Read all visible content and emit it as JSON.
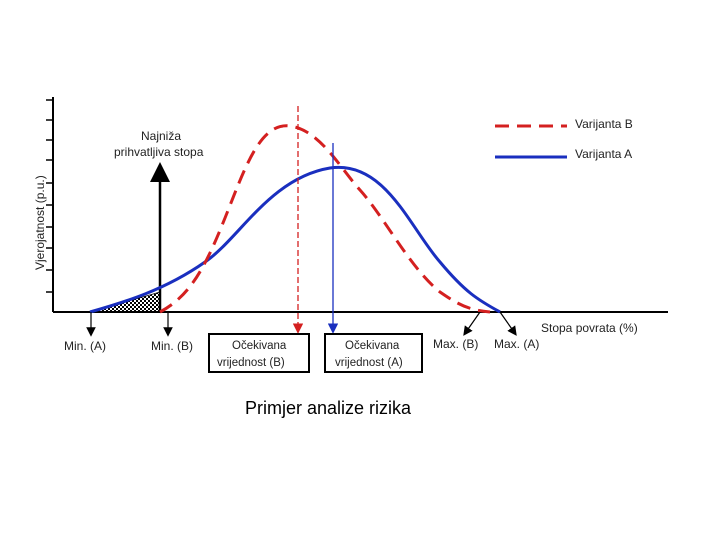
{
  "diagram": {
    "y_axis_label": "Vjerojatnost (p.u.)",
    "x_axis_label": "Stopa povrata (%)",
    "hurdle_label_line1": "Najniža",
    "hurdle_label_line2": "prihvatljiva stopa",
    "legend": [
      {
        "name": "Varijanta B",
        "color": "#d42020",
        "style": "dashed"
      },
      {
        "name": "Varijanta A",
        "color": "#1a2fbf",
        "style": "solid"
      }
    ],
    "markers": {
      "min_a": "Min. (A)",
      "min_b": "Min. (B)",
      "max_b": "Max. (B)",
      "max_a": "Max. (A)"
    },
    "expected_b": {
      "line1": "Očekivana",
      "line2": "vrijednost (B)"
    },
    "expected_a": {
      "line1": "Očekivana",
      "line2": "vrijednost (A)"
    }
  },
  "caption": "Primjer analize rizika"
}
